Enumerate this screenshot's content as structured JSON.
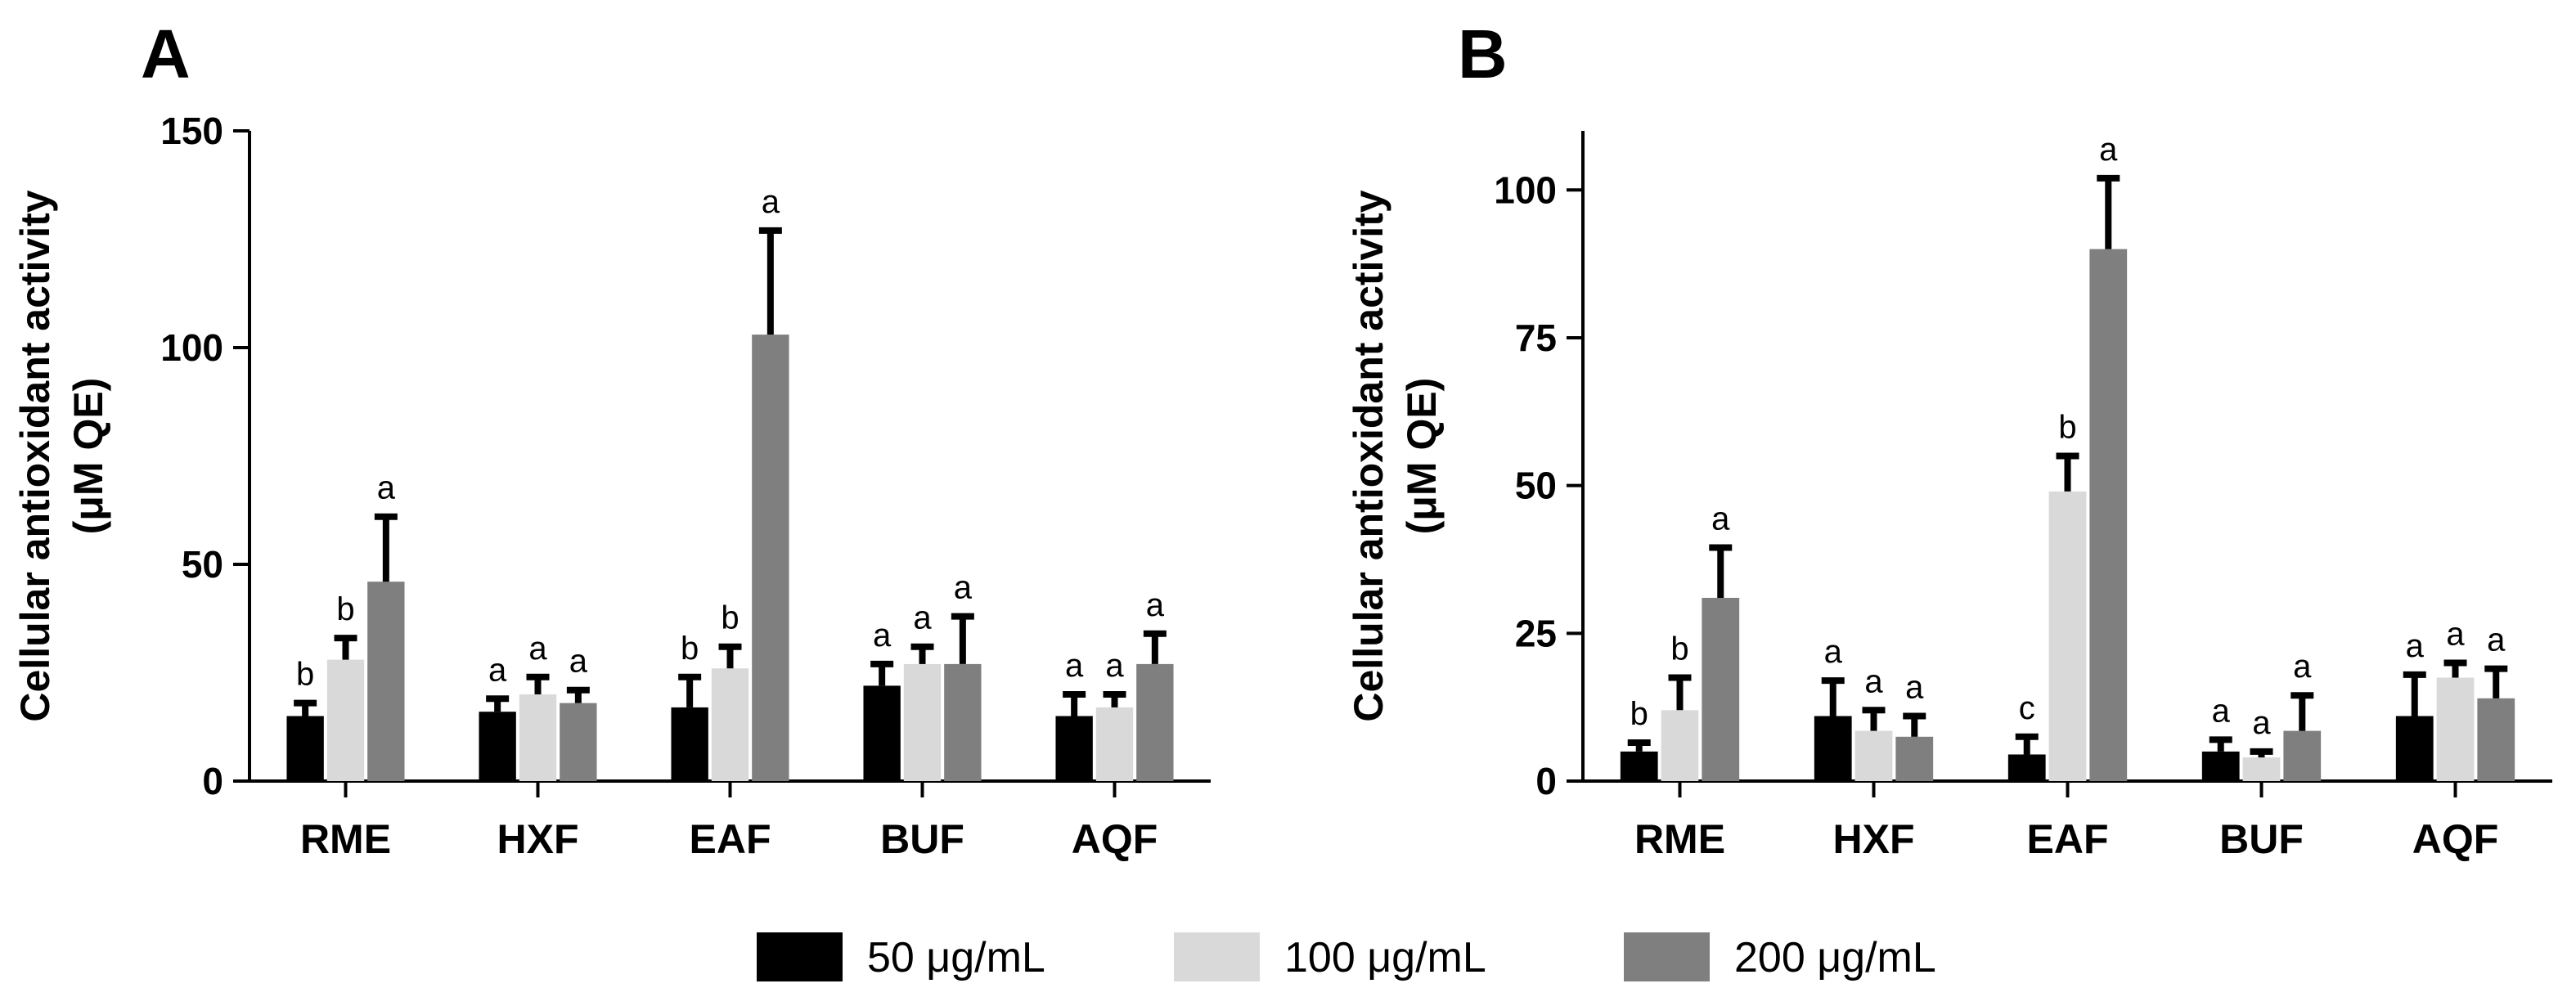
{
  "legend": [
    {
      "label": "50 μg/mL",
      "color": "#000000"
    },
    {
      "label": "100 μg/mL",
      "color": "#d9d9d9"
    },
    {
      "label": "200 μg/mL",
      "color": "#7f7f7f"
    }
  ],
  "chart_data": [
    {
      "panel": "A",
      "type": "bar",
      "title": "",
      "xlabel": "",
      "ylabel": "Cellular antioxidant activity (μM QE)",
      "ylabel_lines": [
        "Cellular antioxidant activity",
        "(μM QE)"
      ],
      "ylim": [
        0,
        150
      ],
      "yticks": [
        0,
        50,
        100,
        150
      ],
      "categories": [
        "RME",
        "HXF",
        "EAF",
        "BUF",
        "AQF"
      ],
      "series": [
        {
          "name": "50 μg/mL",
          "color": "#000000",
          "values": [
            15,
            16,
            17,
            22,
            15
          ],
          "errors": [
            3,
            3,
            7,
            5,
            5
          ],
          "labels": [
            "b",
            "a",
            "b",
            "a",
            "a"
          ]
        },
        {
          "name": "100 μg/mL",
          "color": "#d9d9d9",
          "values": [
            28,
            20,
            26,
            27,
            17
          ],
          "errors": [
            5,
            4,
            5,
            4,
            3
          ],
          "labels": [
            "b",
            "a",
            "b",
            "a",
            "a"
          ]
        },
        {
          "name": "200 μg/mL",
          "color": "#7f7f7f",
          "values": [
            46,
            18,
            103,
            27,
            27
          ],
          "errors": [
            15,
            3,
            24,
            11,
            7
          ],
          "labels": [
            "a",
            "a",
            "a",
            "a",
            "a"
          ]
        }
      ]
    },
    {
      "panel": "B",
      "type": "bar",
      "title": "",
      "xlabel": "",
      "ylabel": "Cellular antioxidant activity (μM QE)",
      "ylabel_lines": [
        "Cellular antioxidant activity",
        "(μM QE)"
      ],
      "ylim": [
        0,
        110
      ],
      "yticks": [
        0,
        25,
        50,
        75,
        100
      ],
      "categories": [
        "RME",
        "HXF",
        "EAF",
        "BUF",
        "AQF"
      ],
      "series": [
        {
          "name": "50 μg/mL",
          "color": "#000000",
          "values": [
            5,
            11,
            4.5,
            5,
            11
          ],
          "errors": [
            1.5,
            6,
            3,
            2,
            7
          ],
          "labels": [
            "b",
            "a",
            "c",
            "a",
            "a"
          ]
        },
        {
          "name": "100 μg/mL",
          "color": "#d9d9d9",
          "values": [
            12,
            8.5,
            49,
            4,
            17.5
          ],
          "errors": [
            5.5,
            3.5,
            6,
            1,
            2.5
          ],
          "labels": [
            "b",
            "a",
            "b",
            "a",
            "a"
          ]
        },
        {
          "name": "200 μg/mL",
          "color": "#7f7f7f",
          "values": [
            31,
            7.5,
            90,
            8.5,
            14
          ],
          "errors": [
            8.5,
            3.5,
            12,
            6,
            5
          ],
          "labels": [
            "a",
            "a",
            "a",
            "a",
            "a"
          ]
        }
      ]
    }
  ]
}
